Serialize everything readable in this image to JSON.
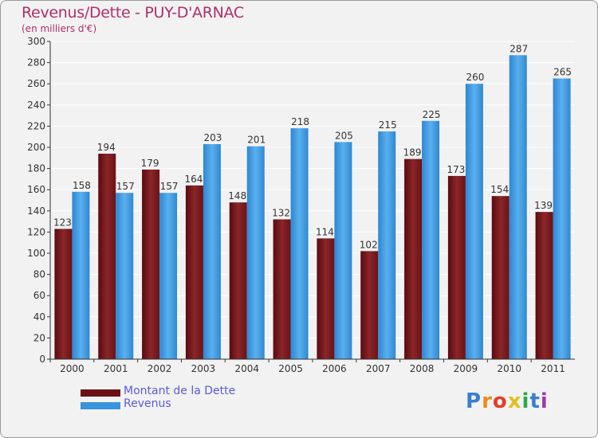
{
  "chart_data": {
    "type": "bar",
    "title": "Revenus/Dette - PUY-D'ARNAC",
    "subtitle": "(en milliers d'€)",
    "categories": [
      "2000",
      "2001",
      "2002",
      "2003",
      "2004",
      "2005",
      "2006",
      "2007",
      "2008",
      "2009",
      "2010",
      "2011"
    ],
    "series": [
      {
        "name": "Montant de la Dette",
        "color": "#7a1a1c",
        "values": [
          123,
          194,
          179,
          164,
          148,
          132,
          114,
          102,
          189,
          173,
          154,
          139
        ]
      },
      {
        "name": "Revenus",
        "color": "#3a94dd",
        "values": [
          158,
          157,
          157,
          203,
          201,
          218,
          205,
          215,
          225,
          260,
          287,
          265
        ]
      }
    ],
    "ylim": [
      0,
      300
    ],
    "yticks": [
      0,
      20,
      40,
      60,
      80,
      100,
      120,
      140,
      160,
      180,
      200,
      220,
      240,
      260,
      280,
      300
    ],
    "grid": true,
    "legend_position": "bottom-left"
  },
  "logo": {
    "letters": [
      "P",
      "r",
      "o",
      "x",
      "i",
      "t",
      "i"
    ],
    "colors": [
      "#3a7fd0",
      "#f08c1a",
      "#e83c2a",
      "#e0c020",
      "#2aa84a",
      "#3a7fd0",
      "#9a3ab0"
    ]
  }
}
